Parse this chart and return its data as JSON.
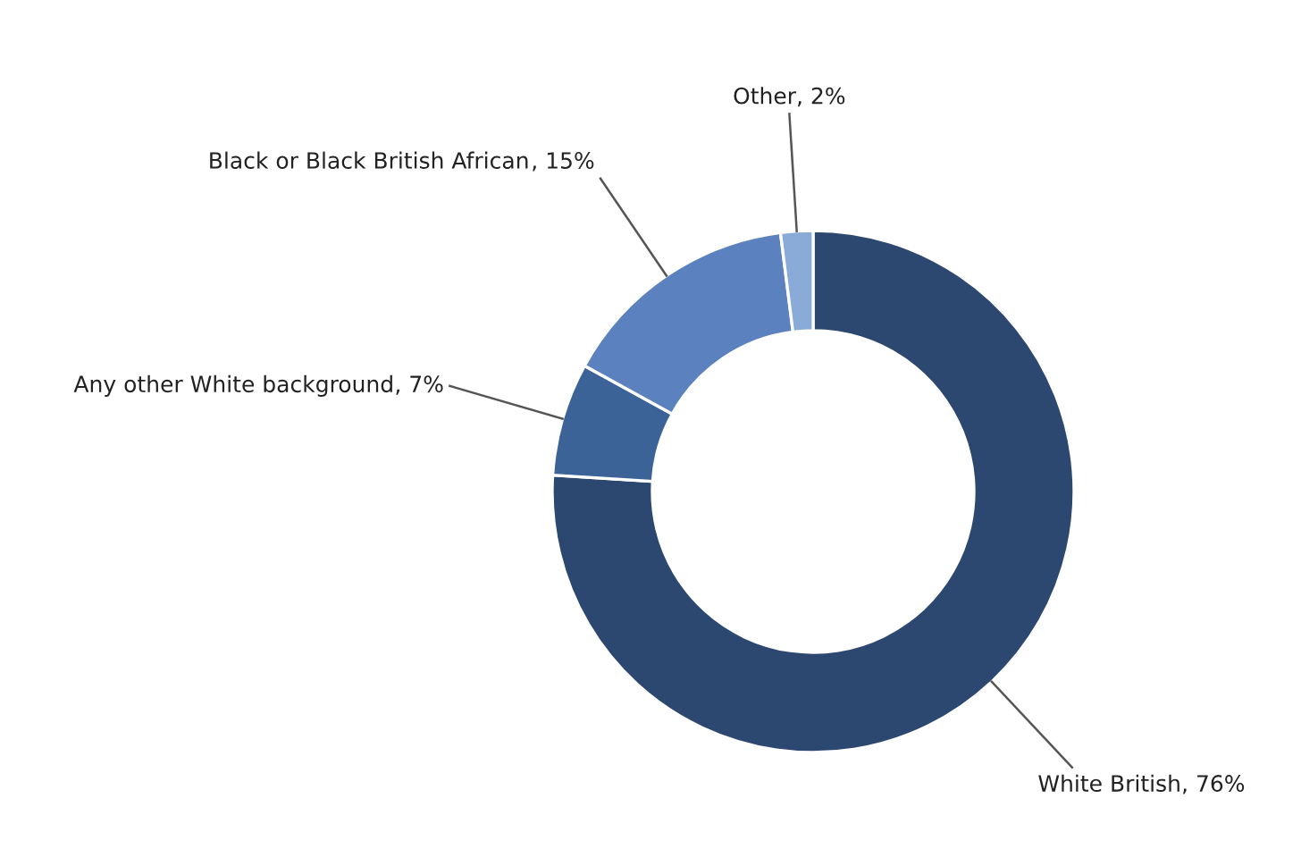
{
  "chart_data": {
    "type": "donut",
    "categories": [
      "White British",
      "Any other White background",
      "Black or Black British African",
      "Other"
    ],
    "values": [
      76,
      7,
      15,
      2
    ],
    "colors": [
      "#2c4870",
      "#3c6398",
      "#5b82bf",
      "#8aaad8"
    ],
    "value_labels": [
      ", 76%",
      ", 7%",
      ", 15%",
      ", 2%"
    ]
  }
}
